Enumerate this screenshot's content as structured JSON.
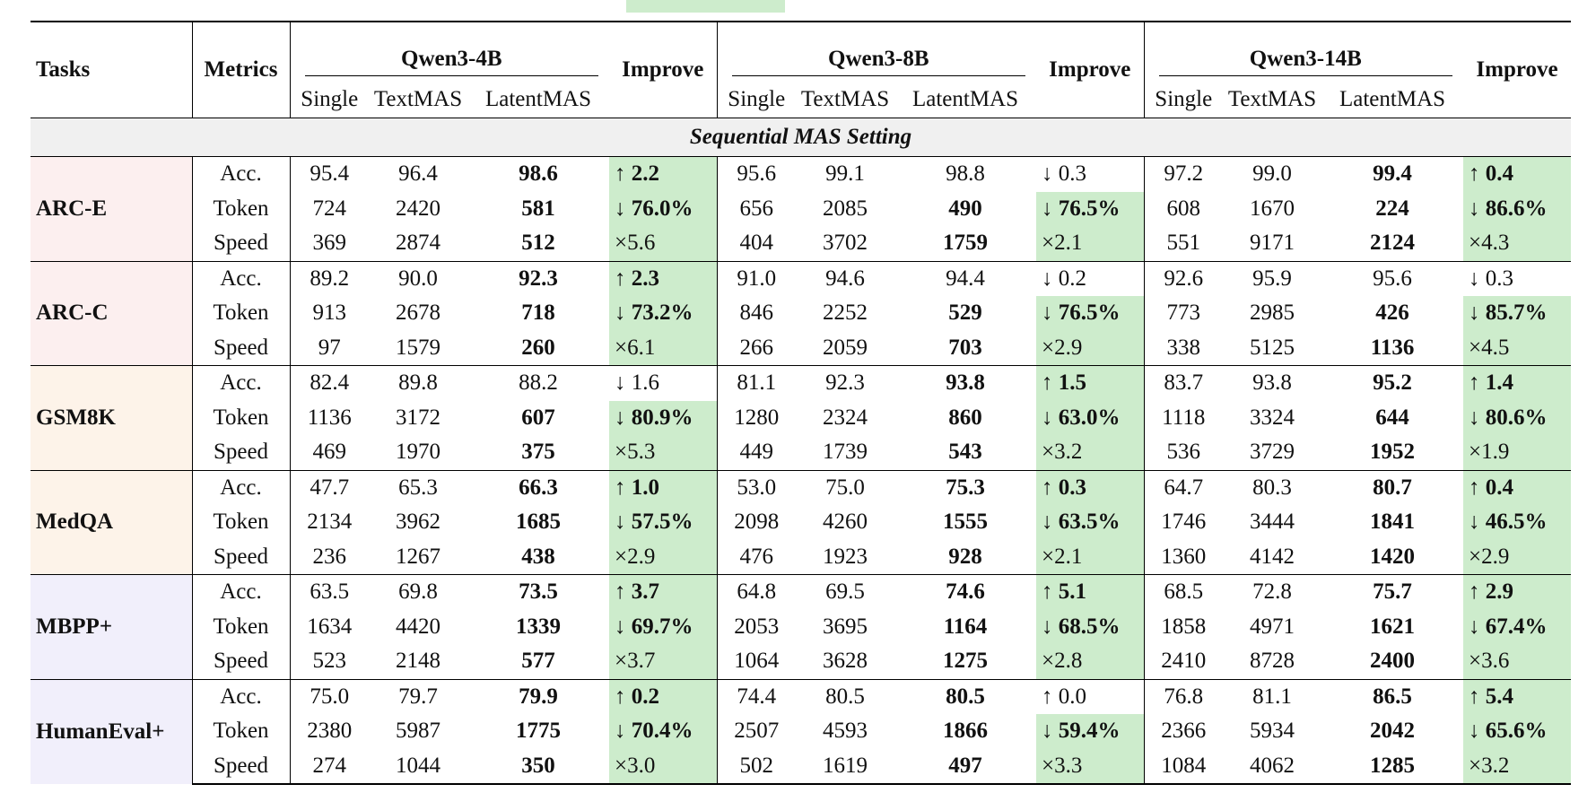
{
  "header": {
    "tasks": "Tasks",
    "metrics": "Metrics",
    "models": [
      "Qwen3-4B",
      "Qwen3-8B",
      "Qwen3-14B"
    ],
    "columns": [
      "Single",
      "TextMAS",
      "LatentMAS"
    ],
    "improve": "Improve"
  },
  "section": "Sequential MAS Setting",
  "tasks": [
    {
      "name": "ARC-E",
      "color": "#fcefef",
      "rows": [
        {
          "metric": "Acc.",
          "cells": [
            [
              "95.4",
              "96.4",
              "98.6",
              "↑ 2.2"
            ],
            [
              "95.6",
              "99.1",
              "98.8",
              "↓ 0.3"
            ],
            [
              "97.2",
              "99.0",
              "99.4",
              "↑ 0.4"
            ]
          ],
          "latent_bold": [
            true,
            false,
            true
          ],
          "improve_bold": [
            true,
            false,
            true
          ],
          "improve_green": [
            true,
            false,
            true
          ]
        },
        {
          "metric": "Token",
          "cells": [
            [
              "724",
              "2420",
              "581",
              "↓ 76.0%"
            ],
            [
              "656",
              "2085",
              "490",
              "↓ 76.5%"
            ],
            [
              "608",
              "1670",
              "224",
              "↓ 86.6%"
            ]
          ],
          "latent_bold": [
            true,
            true,
            true
          ],
          "improve_bold": [
            true,
            true,
            true
          ],
          "improve_green": [
            true,
            true,
            true
          ]
        },
        {
          "metric": "Speed",
          "cells": [
            [
              "369",
              "2874",
              "512",
              "×5.6"
            ],
            [
              "404",
              "3702",
              "1759",
              "×2.1"
            ],
            [
              "551",
              "9171",
              "2124",
              "×4.3"
            ]
          ],
          "latent_bold": [
            true,
            true,
            true
          ],
          "improve_bold": [
            false,
            false,
            false
          ],
          "improve_green": [
            true,
            true,
            true
          ]
        }
      ]
    },
    {
      "name": "ARC-C",
      "color": "#fcefef",
      "rows": [
        {
          "metric": "Acc.",
          "cells": [
            [
              "89.2",
              "90.0",
              "92.3",
              "↑ 2.3"
            ],
            [
              "91.0",
              "94.6",
              "94.4",
              "↓ 0.2"
            ],
            [
              "92.6",
              "95.9",
              "95.6",
              "↓ 0.3"
            ]
          ],
          "latent_bold": [
            true,
            false,
            false
          ],
          "improve_bold": [
            true,
            false,
            false
          ],
          "improve_green": [
            true,
            false,
            false
          ]
        },
        {
          "metric": "Token",
          "cells": [
            [
              "913",
              "2678",
              "718",
              "↓ 73.2%"
            ],
            [
              "846",
              "2252",
              "529",
              "↓ 76.5%"
            ],
            [
              "773",
              "2985",
              "426",
              "↓ 85.7%"
            ]
          ],
          "latent_bold": [
            true,
            true,
            true
          ],
          "improve_bold": [
            true,
            true,
            true
          ],
          "improve_green": [
            true,
            true,
            true
          ]
        },
        {
          "metric": "Speed",
          "cells": [
            [
              "97",
              "1579",
              "260",
              "×6.1"
            ],
            [
              "266",
              "2059",
              "703",
              "×2.9"
            ],
            [
              "338",
              "5125",
              "1136",
              "×4.5"
            ]
          ],
          "latent_bold": [
            true,
            true,
            true
          ],
          "improve_bold": [
            false,
            false,
            false
          ],
          "improve_green": [
            true,
            true,
            true
          ]
        }
      ]
    },
    {
      "name": "GSM8K",
      "color": "#fdf3e9",
      "rows": [
        {
          "metric": "Acc.",
          "cells": [
            [
              "82.4",
              "89.8",
              "88.2",
              "↓ 1.6"
            ],
            [
              "81.1",
              "92.3",
              "93.8",
              "↑ 1.5"
            ],
            [
              "83.7",
              "93.8",
              "95.2",
              "↑ 1.4"
            ]
          ],
          "latent_bold": [
            false,
            true,
            true
          ],
          "improve_bold": [
            false,
            true,
            true
          ],
          "improve_green": [
            false,
            true,
            true
          ]
        },
        {
          "metric": "Token",
          "cells": [
            [
              "1136",
              "3172",
              "607",
              "↓ 80.9%"
            ],
            [
              "1280",
              "2324",
              "860",
              "↓ 63.0%"
            ],
            [
              "1118",
              "3324",
              "644",
              "↓ 80.6%"
            ]
          ],
          "latent_bold": [
            true,
            true,
            true
          ],
          "improve_bold": [
            true,
            true,
            true
          ],
          "improve_green": [
            true,
            true,
            true
          ]
        },
        {
          "metric": "Speed",
          "cells": [
            [
              "469",
              "1970",
              "375",
              "×5.3"
            ],
            [
              "449",
              "1739",
              "543",
              "×3.2"
            ],
            [
              "536",
              "3729",
              "1952",
              "×1.9"
            ]
          ],
          "latent_bold": [
            true,
            true,
            true
          ],
          "improve_bold": [
            false,
            false,
            false
          ],
          "improve_green": [
            true,
            true,
            true
          ]
        }
      ]
    },
    {
      "name": "MedQA",
      "color": "#fdf3e9",
      "rows": [
        {
          "metric": "Acc.",
          "cells": [
            [
              "47.7",
              "65.3",
              "66.3",
              "↑ 1.0"
            ],
            [
              "53.0",
              "75.0",
              "75.3",
              "↑ 0.3"
            ],
            [
              "64.7",
              "80.3",
              "80.7",
              "↑ 0.4"
            ]
          ],
          "latent_bold": [
            true,
            true,
            true
          ],
          "improve_bold": [
            true,
            true,
            true
          ],
          "improve_green": [
            true,
            true,
            true
          ]
        },
        {
          "metric": "Token",
          "cells": [
            [
              "2134",
              "3962",
              "1685",
              "↓ 57.5%"
            ],
            [
              "2098",
              "4260",
              "1555",
              "↓ 63.5%"
            ],
            [
              "1746",
              "3444",
              "1841",
              "↓ 46.5%"
            ]
          ],
          "latent_bold": [
            true,
            true,
            true
          ],
          "improve_bold": [
            true,
            true,
            true
          ],
          "improve_green": [
            true,
            true,
            true
          ]
        },
        {
          "metric": "Speed",
          "cells": [
            [
              "236",
              "1267",
              "438",
              "×2.9"
            ],
            [
              "476",
              "1923",
              "928",
              "×2.1"
            ],
            [
              "1360",
              "4142",
              "1420",
              "×2.9"
            ]
          ],
          "latent_bold": [
            true,
            true,
            true
          ],
          "improve_bold": [
            false,
            false,
            false
          ],
          "improve_green": [
            true,
            true,
            true
          ]
        }
      ]
    },
    {
      "name": "MBPP+",
      "color": "#f1effb",
      "rows": [
        {
          "metric": "Acc.",
          "cells": [
            [
              "63.5",
              "69.8",
              "73.5",
              "↑ 3.7"
            ],
            [
              "64.8",
              "69.5",
              "74.6",
              "↑ 5.1"
            ],
            [
              "68.5",
              "72.8",
              "75.7",
              "↑ 2.9"
            ]
          ],
          "latent_bold": [
            true,
            true,
            true
          ],
          "improve_bold": [
            true,
            true,
            true
          ],
          "improve_green": [
            true,
            true,
            true
          ]
        },
        {
          "metric": "Token",
          "cells": [
            [
              "1634",
              "4420",
              "1339",
              "↓ 69.7%"
            ],
            [
              "2053",
              "3695",
              "1164",
              "↓ 68.5%"
            ],
            [
              "1858",
              "4971",
              "1621",
              "↓ 67.4%"
            ]
          ],
          "latent_bold": [
            true,
            true,
            true
          ],
          "improve_bold": [
            true,
            true,
            true
          ],
          "improve_green": [
            true,
            true,
            true
          ]
        },
        {
          "metric": "Speed",
          "cells": [
            [
              "523",
              "2148",
              "577",
              "×3.7"
            ],
            [
              "1064",
              "3628",
              "1275",
              "×2.8"
            ],
            [
              "2410",
              "8728",
              "2400",
              "×3.6"
            ]
          ],
          "latent_bold": [
            true,
            true,
            true
          ],
          "improve_bold": [
            false,
            false,
            false
          ],
          "improve_green": [
            true,
            true,
            true
          ]
        }
      ]
    },
    {
      "name": "HumanEval+",
      "color": "#f1effb",
      "rows": [
        {
          "metric": "Acc.",
          "cells": [
            [
              "75.0",
              "79.7",
              "79.9",
              "↑ 0.2"
            ],
            [
              "74.4",
              "80.5",
              "80.5",
              "↑ 0.0"
            ],
            [
              "76.8",
              "81.1",
              "86.5",
              "↑ 5.4"
            ]
          ],
          "latent_bold": [
            true,
            true,
            true
          ],
          "improve_bold": [
            true,
            false,
            true
          ],
          "improve_green": [
            true,
            false,
            true
          ]
        },
        {
          "metric": "Token",
          "cells": [
            [
              "2380",
              "5987",
              "1775",
              "↓ 70.4%"
            ],
            [
              "2507",
              "4593",
              "1866",
              "↓ 59.4%"
            ],
            [
              "2366",
              "5934",
              "2042",
              "↓ 65.6%"
            ]
          ],
          "latent_bold": [
            true,
            true,
            true
          ],
          "improve_bold": [
            true,
            true,
            true
          ],
          "improve_green": [
            true,
            true,
            true
          ]
        },
        {
          "metric": "Speed",
          "cells": [
            [
              "274",
              "1044",
              "350",
              "×3.0"
            ],
            [
              "502",
              "1619",
              "497",
              "×3.3"
            ],
            [
              "1084",
              "4062",
              "1285",
              "×3.2"
            ]
          ],
          "latent_bold": [
            true,
            true,
            true
          ],
          "improve_bold": [
            false,
            false,
            false
          ],
          "improve_green": [
            true,
            true,
            true
          ]
        }
      ]
    }
  ]
}
